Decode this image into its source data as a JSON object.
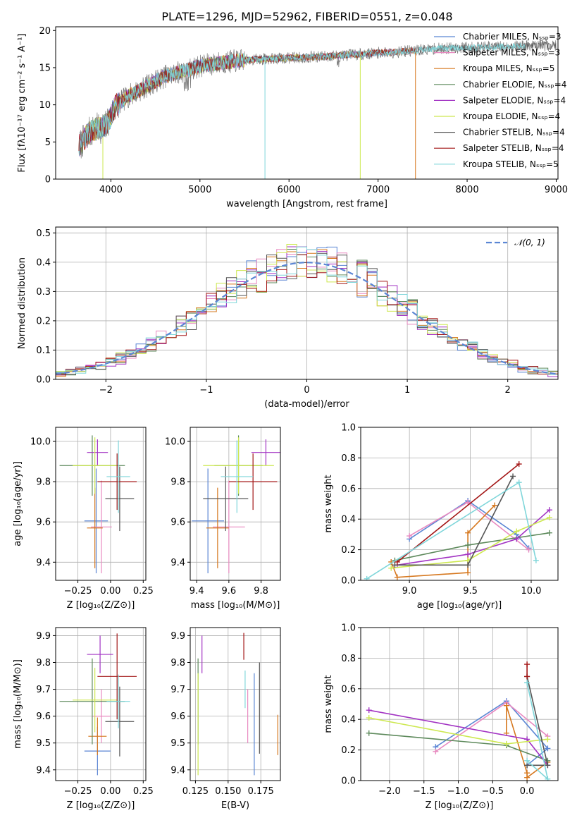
{
  "figure_title": "PLATE=1296, MJD=52962, FIBERID=0551, z=0.048",
  "series_colors": [
    "#5b86d4",
    "#e889c0",
    "#d6781f",
    "#5e8a5c",
    "#a233c3",
    "#cde850",
    "#555555",
    "#a31616",
    "#7fd6da"
  ],
  "chart_data": [
    {
      "id": "spectrum",
      "type": "line",
      "xlabel": "wavelength [Angstrom, rest frame]",
      "ylabel": "Flux [fλ10⁻¹⁷ erg cm⁻² s⁻¹ A⁻¹]",
      "xlim": [
        3380,
        9020
      ],
      "ylim": [
        0,
        20.5
      ],
      "xticks": [
        4000,
        5000,
        6000,
        7000,
        8000,
        9000
      ],
      "yticks": [
        0,
        5,
        10,
        15,
        20
      ],
      "legend_position": "upper right",
      "legend": [
        "Chabrier MILES, Nₛₛₚ=3",
        "Salpeter MILES, Nₛₛₚ=3",
        "Kroupa MILES, Nₛₛₚ=5",
        "Chabrier ELODIE, Nₛₛₚ=4",
        "Salpeter ELODIE, Nₛₛₚ=4",
        "Kroupa ELODIE, Nₛₛₚ=4",
        "Chabrier STELIB, Nₛₛₚ=4",
        "Salpeter STELIB, Nₛₛₚ=4",
        "Kroupa STELIB, Nₛₛₚ=5"
      ],
      "data_curve": {
        "x": [
          3650,
          3750,
          3850,
          3950,
          4050,
          4200,
          4400,
          4600,
          4800,
          5000,
          5200,
          5400,
          5600,
          5800,
          6000,
          6200,
          6400,
          6600,
          6800,
          7000,
          7200,
          7400,
          7700,
          8000,
          8300,
          8600,
          8900
        ],
        "y": [
          4.5,
          6.2,
          6.8,
          7.2,
          9.8,
          11.2,
          12.5,
          13.8,
          14.5,
          15.2,
          15.6,
          15.9,
          16.1,
          16.2,
          16.3,
          16.4,
          16.5,
          16.7,
          16.8,
          17.0,
          17.1,
          17.3,
          17.6,
          17.7,
          17.8,
          17.9,
          18.0
        ]
      },
      "model_end_wavelengths": [
        7420,
        7420,
        7420,
        6800,
        6800,
        6800,
        9000,
        7420,
        8650
      ],
      "dropouts": [
        {
          "x": 3910,
          "series": 5
        },
        {
          "x": 5730,
          "series": 8
        },
        {
          "x": 6800,
          "series": 5
        },
        {
          "x": 7420,
          "series": 2
        }
      ]
    },
    {
      "id": "residual_histogram",
      "type": "histogram",
      "xlabel": "(data-model)/error",
      "ylabel": "Normed distribution",
      "xlim": [
        -2.5,
        2.5
      ],
      "ylim": [
        0,
        0.52
      ],
      "xticks": [
        -2,
        -1,
        0,
        1,
        2
      ],
      "yticks": [
        0.0,
        0.1,
        0.2,
        0.3,
        0.4,
        0.5
      ],
      "bin_width": 0.1,
      "reference_curve": {
        "name": "𝒩(0, 1)",
        "mean": 0,
        "sigma": 1
      },
      "legend_position": "upper right"
    },
    {
      "id": "age_vs_Z",
      "type": "errorbar",
      "xlabel": "Z [log₁₀(Z/Z⊙)]",
      "ylabel": "age  [log₁₀(age/yr)]",
      "xlim": [
        -0.42,
        0.27
      ],
      "ylim": [
        9.31,
        10.07
      ],
      "xticks": [
        -0.25,
        0.0,
        0.25
      ],
      "yticks": [
        9.4,
        9.6,
        9.8,
        10.0
      ],
      "points": [
        {
          "s": 0,
          "x": -0.11,
          "y": 9.605,
          "xerr": 0.09,
          "yerr": 0.26
        },
        {
          "s": 1,
          "x": -0.07,
          "y": 9.575,
          "xerr": 0.08,
          "yerr": 0.23
        },
        {
          "s": 2,
          "x": -0.12,
          "y": 9.57,
          "xerr": 0.06,
          "yerr": 0.2
        },
        {
          "s": 3,
          "x": -0.14,
          "y": 9.88,
          "xerr": 0.25,
          "yerr": 0.15
        },
        {
          "s": 4,
          "x": -0.1,
          "y": 9.945,
          "xerr": 0.08,
          "yerr": 0.065
        },
        {
          "s": 5,
          "x": -0.12,
          "y": 9.88,
          "xerr": 0.17,
          "yerr": 0.14
        },
        {
          "s": 6,
          "x": 0.07,
          "y": 9.715,
          "xerr": 0.11,
          "yerr": 0.16
        },
        {
          "s": 7,
          "x": 0.05,
          "y": 9.8,
          "xerr": 0.15,
          "yerr": 0.14
        },
        {
          "s": 8,
          "x": 0.06,
          "y": 9.825,
          "xerr": 0.09,
          "yerr": 0.18
        }
      ]
    },
    {
      "id": "age_vs_mass",
      "type": "errorbar",
      "xlabel": "mass [log₁₀(M/M⊙)]",
      "ylabel": "",
      "xlim": [
        9.36,
        9.92
      ],
      "ylim": [
        9.31,
        10.07
      ],
      "xticks": [
        9.4,
        9.6,
        9.8
      ],
      "yticks": [
        9.4,
        9.6,
        9.8,
        10.0
      ],
      "points": [
        {
          "s": 0,
          "x": 9.47,
          "y": 9.605,
          "xerr": 0.1,
          "yerr": 0.26
        },
        {
          "s": 1,
          "x": 9.6,
          "y": 9.575,
          "xerr": 0.1,
          "yerr": 0.23
        },
        {
          "s": 2,
          "x": 9.53,
          "y": 9.57,
          "xerr": 0.07,
          "yerr": 0.2
        },
        {
          "s": 3,
          "x": 9.66,
          "y": 9.88,
          "xerr": 0.15,
          "yerr": 0.15
        },
        {
          "s": 4,
          "x": 9.83,
          "y": 9.945,
          "xerr": 0.09,
          "yerr": 0.065
        },
        {
          "s": 5,
          "x": 9.66,
          "y": 9.88,
          "xerr": 0.22,
          "yerr": 0.14
        },
        {
          "s": 6,
          "x": 9.58,
          "y": 9.715,
          "xerr": 0.14,
          "yerr": 0.16
        },
        {
          "s": 7,
          "x": 9.75,
          "y": 9.8,
          "xerr": 0.15,
          "yerr": 0.14
        },
        {
          "s": 8,
          "x": 9.65,
          "y": 9.825,
          "xerr": 0.1,
          "yerr": 0.18
        }
      ]
    },
    {
      "id": "massweight_vs_age",
      "type": "line",
      "xlabel": "age  [log₁₀(age/yr)]",
      "ylabel": "mass weight",
      "xlim": [
        8.6,
        10.22
      ],
      "ylim": [
        0,
        1.0
      ],
      "xticks": [
        9.0,
        9.5,
        10.0
      ],
      "yticks": [
        0.0,
        0.2,
        0.4,
        0.6,
        0.8,
        1.0
      ],
      "series": [
        {
          "s": 0,
          "x": [
            9.0,
            9.48,
            9.88,
            9.98
          ],
          "y": [
            0.27,
            0.52,
            0.3,
            0.21
          ]
        },
        {
          "s": 1,
          "x": [
            9.0,
            9.48,
            9.98
          ],
          "y": [
            0.29,
            0.51,
            0.2
          ]
        },
        {
          "s": 2,
          "x": [
            8.85,
            8.9,
            9.48,
            9.48,
            9.7
          ],
          "y": [
            0.12,
            0.02,
            0.05,
            0.31,
            0.49
          ]
        },
        {
          "s": 3,
          "x": [
            8.88,
            9.48,
            10.15
          ],
          "y": [
            0.13,
            0.23,
            0.31
          ]
        },
        {
          "s": 4,
          "x": [
            8.9,
            9.48,
            9.88,
            10.15
          ],
          "y": [
            0.1,
            0.17,
            0.27,
            0.46
          ]
        },
        {
          "s": 5,
          "x": [
            8.85,
            9.48,
            9.88,
            10.15
          ],
          "y": [
            0.08,
            0.13,
            0.32,
            0.41
          ]
        },
        {
          "s": 6,
          "x": [
            8.88,
            9.48,
            9.85
          ],
          "y": [
            0.1,
            0.1,
            0.68
          ]
        },
        {
          "s": 7,
          "x": [
            8.9,
            9.9
          ],
          "y": [
            0.12,
            0.76
          ]
        },
        {
          "s": 8,
          "x": [
            8.65,
            9.9,
            10.04
          ],
          "y": [
            0.01,
            0.64,
            0.13
          ]
        }
      ]
    },
    {
      "id": "mass_vs_Z",
      "type": "errorbar",
      "xlabel": "Z [log₁₀(Z/Z⊙)]",
      "ylabel": "mass [log₁₀(M/M⊙)]",
      "xlim": [
        -0.42,
        0.27
      ],
      "ylim": [
        9.36,
        9.93
      ],
      "xticks": [
        -0.25,
        0.0,
        0.25
      ],
      "yticks": [
        9.4,
        9.5,
        9.6,
        9.7,
        9.8,
        9.9
      ],
      "points": [
        {
          "s": 0,
          "x": -0.1,
          "y": 9.47,
          "xerr": 0.1,
          "yerr": 0.09
        },
        {
          "s": 1,
          "x": -0.07,
          "y": 9.6,
          "xerr": 0.07,
          "yerr": 0.1
        },
        {
          "s": 2,
          "x": -0.1,
          "y": 9.525,
          "xerr": 0.07,
          "yerr": 0.07
        },
        {
          "s": 3,
          "x": -0.14,
          "y": 9.655,
          "xerr": 0.25,
          "yerr": 0.16
        },
        {
          "s": 4,
          "x": -0.08,
          "y": 9.83,
          "xerr": 0.1,
          "yerr": 0.07
        },
        {
          "s": 5,
          "x": -0.12,
          "y": 9.66,
          "xerr": 0.17,
          "yerr": 0.12
        },
        {
          "s": 6,
          "x": 0.07,
          "y": 9.58,
          "xerr": 0.11,
          "yerr": 0.13
        },
        {
          "s": 7,
          "x": 0.05,
          "y": 9.748,
          "xerr": 0.15,
          "yerr": 0.16
        },
        {
          "s": 8,
          "x": 0.06,
          "y": 9.655,
          "xerr": 0.09,
          "yerr": 0.1
        }
      ]
    },
    {
      "id": "mass_vs_ebv",
      "type": "errorbar",
      "xlabel": "E(B-V)",
      "ylabel": "",
      "xlim": [
        0.121,
        0.19
      ],
      "ylim": [
        9.36,
        9.93
      ],
      "xticks": [
        0.125,
        0.15,
        0.175
      ],
      "yticks": [
        9.4,
        9.5,
        9.6,
        9.7,
        9.8,
        9.9
      ],
      "points": [
        {
          "s": 0,
          "x": 0.17,
          "y": 9.57,
          "xerr": 0,
          "yerr": 0.19
        },
        {
          "s": 1,
          "x": 0.165,
          "y": 9.6,
          "xerr": 0,
          "yerr": 0.1
        },
        {
          "s": 2,
          "x": 0.188,
          "y": 9.53,
          "xerr": 0,
          "yerr": 0.075
        },
        {
          "s": 3,
          "x": 0.127,
          "y": 9.655,
          "xerr": 0,
          "yerr": 0.16
        },
        {
          "s": 4,
          "x": 0.13,
          "y": 9.83,
          "xerr": 0,
          "yerr": 0.07
        },
        {
          "s": 5,
          "x": 0.127,
          "y": 9.57,
          "xerr": 0,
          "yerr": 0.19
        },
        {
          "s": 6,
          "x": 0.174,
          "y": 9.63,
          "xerr": 0,
          "yerr": 0.17
        },
        {
          "s": 7,
          "x": 0.162,
          "y": 9.86,
          "xerr": 0,
          "yerr": 0.05
        },
        {
          "s": 8,
          "x": 0.163,
          "y": 9.7,
          "xerr": 0,
          "yerr": 0.07
        }
      ]
    },
    {
      "id": "massweight_vs_Z",
      "type": "line",
      "xlabel": "Z [log₁₀(Z/Z⊙)]",
      "ylabel": "mass weight",
      "xlim": [
        -2.42,
        0.45
      ],
      "ylim": [
        0,
        1.0
      ],
      "xticks": [
        -2.0,
        -1.5,
        -1.0,
        -0.5,
        0.0
      ],
      "yticks": [
        0.0,
        0.2,
        0.4,
        0.6,
        0.8,
        1.0
      ],
      "series": [
        {
          "s": 0,
          "x": [
            -1.33,
            -0.3,
            0.3,
            0.0
          ],
          "y": [
            0.22,
            0.52,
            0.21,
            0.1
          ]
        },
        {
          "s": 1,
          "x": [
            -1.33,
            -0.3,
            0.3
          ],
          "y": [
            0.19,
            0.51,
            0.29
          ]
        },
        {
          "s": 2,
          "x": [
            -0.3,
            -0.3,
            0.0,
            0.0,
            0.3
          ],
          "y": [
            0.31,
            0.49,
            0.05,
            0.02,
            0.12
          ]
        },
        {
          "s": 3,
          "x": [
            -2.3,
            -0.3,
            0.3
          ],
          "y": [
            0.31,
            0.23,
            0.13
          ]
        },
        {
          "s": 4,
          "x": [
            -2.3,
            0.0,
            0.3
          ],
          "y": [
            0.46,
            0.27,
            0.1
          ]
        },
        {
          "s": 5,
          "x": [
            -2.3,
            -0.3,
            0.3
          ],
          "y": [
            0.41,
            0.24,
            0.27
          ]
        },
        {
          "s": 6,
          "x": [
            0.0,
            0.3,
            0.0
          ],
          "y": [
            0.1,
            0.1,
            0.68
          ]
        },
        {
          "s": 7,
          "x": [
            0.0,
            0.0
          ],
          "y": [
            0.68,
            0.76
          ]
        },
        {
          "s": 8,
          "x": [
            0.0,
            0.3,
            0.0
          ],
          "y": [
            0.64,
            0.01,
            0.13
          ]
        }
      ]
    }
  ]
}
